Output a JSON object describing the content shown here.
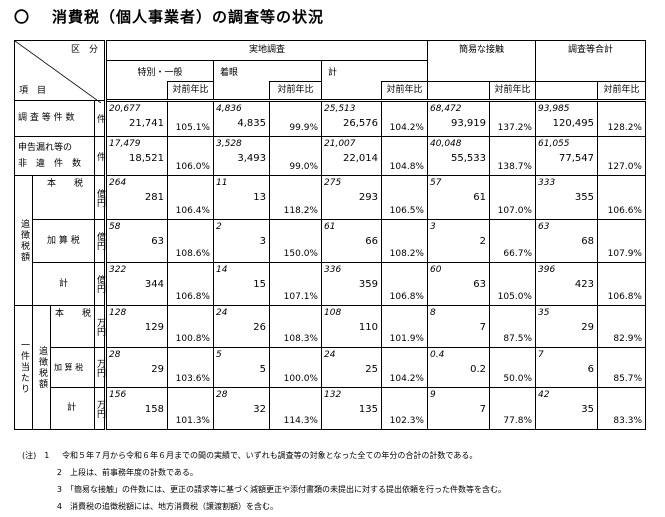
{
  "title": {
    "mark": "〇",
    "text": "消費税（個人事業者）の調査等の状況"
  },
  "header": {
    "kubun": "区　分",
    "koumoku": "項　目",
    "jitchi": "実地調査",
    "tokubetsu": "特別・一般",
    "chakugan": "着眼",
    "kei": "計",
    "kanni": "簡易な接触",
    "goukei": "調査等合計",
    "taizen": "対前年比"
  },
  "labels": {
    "chousa": "調 査 等 件 数",
    "shinkoku1": "申告漏れ等の",
    "shinkoku2": "非　違　件　数",
    "tsuichou": "追徴税額",
    "ikken": "一件当たり",
    "ikken_tsuichou": "追徴税額",
    "honzei": "本　　税",
    "kasanzei": "加 算 税",
    "kei": "計"
  },
  "units": {
    "ken": "件",
    "okuen": "億円",
    "manen": "万円"
  },
  "rows": [
    {
      "p": [
        "20,677",
        "4,836",
        "25,513",
        "68,472",
        "93,985"
      ],
      "c": [
        "21,741",
        "4,835",
        "26,576",
        "93,919",
        "120,495"
      ],
      "r": [
        "105.1%",
        "99.9%",
        "104.2%",
        "137.2%",
        "128.2%"
      ]
    },
    {
      "p": [
        "17,479",
        "3,528",
        "21,007",
        "40,048",
        "61,055"
      ],
      "c": [
        "18,521",
        "3,493",
        "22,014",
        "55,533",
        "77,547"
      ],
      "r": [
        "106.0%",
        "99.0%",
        "104.8%",
        "138.7%",
        "127.0%"
      ]
    },
    {
      "p": [
        "264",
        "11",
        "275",
        "57",
        "333"
      ],
      "c": [
        "281",
        "13",
        "293",
        "61",
        "355"
      ],
      "r": [
        "106.4%",
        "118.2%",
        "106.5%",
        "107.0%",
        "106.6%"
      ]
    },
    {
      "p": [
        "58",
        "2",
        "61",
        "3",
        "63"
      ],
      "c": [
        "63",
        "3",
        "66",
        "2",
        "68"
      ],
      "r": [
        "108.6%",
        "150.0%",
        "108.2%",
        "66.7%",
        "107.9%"
      ]
    },
    {
      "p": [
        "322",
        "14",
        "336",
        "60",
        "396"
      ],
      "c": [
        "344",
        "15",
        "359",
        "63",
        "423"
      ],
      "r": [
        "106.8%",
        "107.1%",
        "106.8%",
        "105.0%",
        "106.8%"
      ]
    },
    {
      "p": [
        "128",
        "24",
        "108",
        "8",
        "35"
      ],
      "c": [
        "129",
        "26",
        "110",
        "7",
        "29"
      ],
      "r": [
        "100.8%",
        "108.3%",
        "101.9%",
        "87.5%",
        "82.9%"
      ]
    },
    {
      "p": [
        "28",
        "5",
        "24",
        "0.4",
        "7"
      ],
      "c": [
        "29",
        "5",
        "25",
        "0.2",
        "6"
      ],
      "r": [
        "103.6%",
        "100.0%",
        "104.2%",
        "50.0%",
        "85.7%"
      ]
    },
    {
      "p": [
        "156",
        "28",
        "132",
        "9",
        "42"
      ],
      "c": [
        "158",
        "32",
        "135",
        "7",
        "35"
      ],
      "r": [
        "101.3%",
        "114.3%",
        "102.3%",
        "77.8%",
        "83.3%"
      ]
    }
  ],
  "notes": [
    {
      "num": "(注)　1",
      "text": "令和５年７月から令和６年６月までの間の実績で、いずれも調査等の対象となった全ての年分の合計の計数である。"
    },
    {
      "num": "2",
      "text": "上段は、前事務年度の計数である。"
    },
    {
      "num": "3",
      "text": "「簡易な接触」の件数には、更正の請求等に基づく減額更正や添付書類の未提出に対する提出依頼を行った件数等を含む。"
    },
    {
      "num": "4",
      "text": "消費税の追徴税額には、地方消費税（譲渡割額）を含む。"
    }
  ]
}
